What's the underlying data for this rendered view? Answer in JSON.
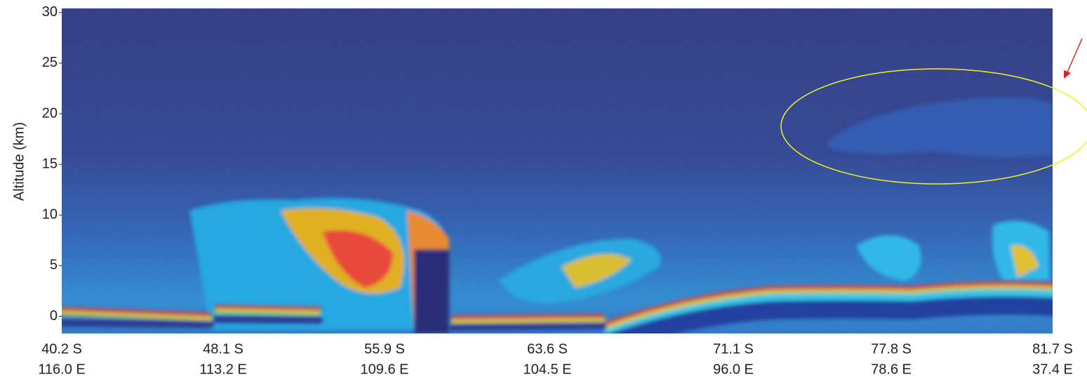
{
  "chart_data": {
    "type": "heatmap",
    "y_label": "Altitude (km)",
    "ylim": [
      -1.7,
      30.4
    ],
    "yticks": [
      0,
      5,
      10,
      15,
      20,
      25,
      30
    ],
    "x_tick_labels": [
      {
        "lat": "40.2 S",
        "lon": "116.0 E"
      },
      {
        "lat": "48.1 S",
        "lon": "113.2 E"
      },
      {
        "lat": "55.9 S",
        "lon": "109.6 E"
      },
      {
        "lat": "63.6 S",
        "lon": "104.5 E"
      },
      {
        "lat": "71.1 S",
        "lon": "96.0 E"
      },
      {
        "lat": "77.8 S",
        "lon": "78.6 E"
      },
      {
        "lat": "81.7 S",
        "lon": "37.4 E"
      }
    ]
  }
}
